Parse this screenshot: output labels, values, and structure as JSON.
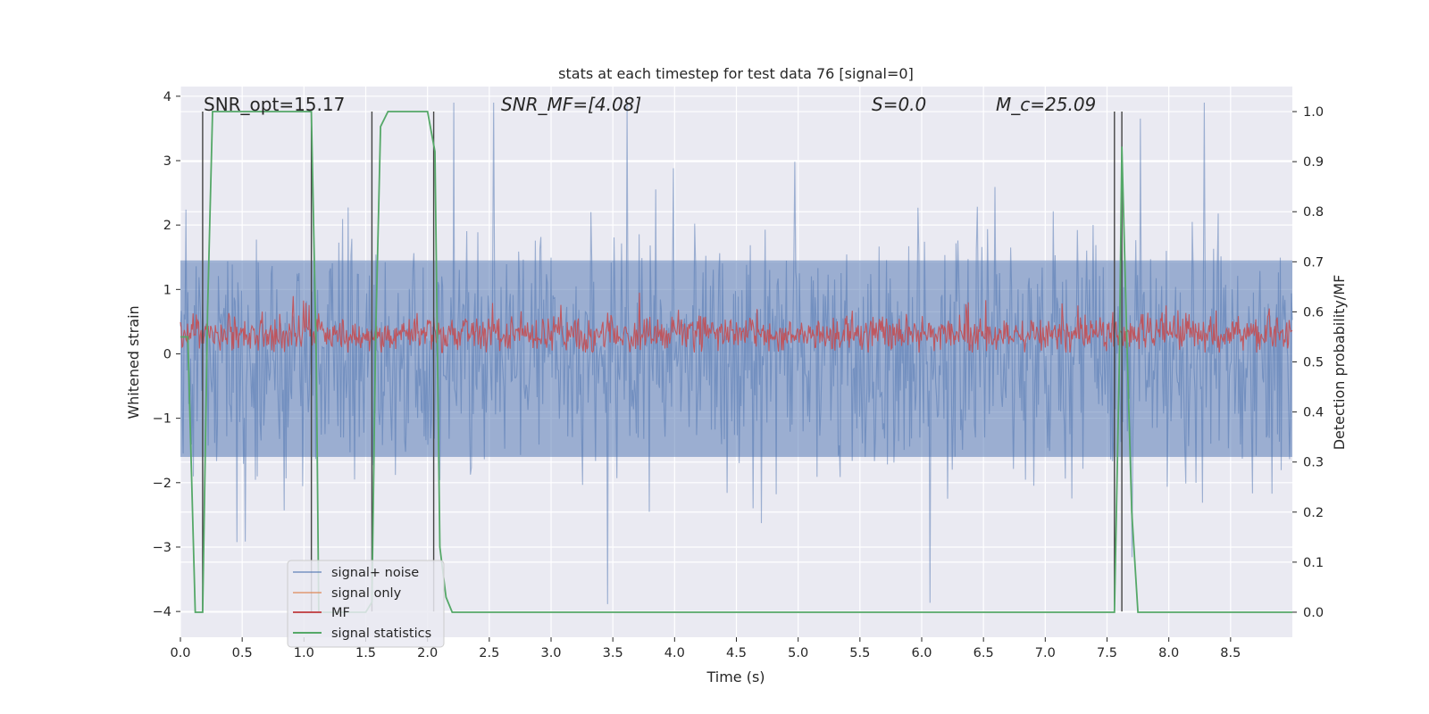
{
  "chart_data": {
    "type": "line",
    "title": "stats at each timestep for test data 76 [signal=0]",
    "xlabel": "Time (s)",
    "ylabel_left": "Whitened strain",
    "ylabel_right": "Detection probability/MF",
    "xlim": [
      0.0,
      9.0
    ],
    "ylim_left": [
      -4.4,
      4.15
    ],
    "ylim_right": [
      -0.05,
      1.05
    ],
    "x_ticks": [
      "0.0",
      "0.5",
      "1.0",
      "1.5",
      "2.0",
      "2.5",
      "3.0",
      "3.5",
      "4.0",
      "4.5",
      "5.0",
      "5.5",
      "6.0",
      "6.5",
      "7.0",
      "7.5",
      "8.0",
      "8.5"
    ],
    "y_ticks_left": [
      "4",
      "3",
      "2",
      "1",
      "0",
      "−1",
      "−2",
      "−3",
      "−4"
    ],
    "y_ticks_right": [
      "1.0",
      "0.9",
      "0.8",
      "0.7",
      "0.6",
      "0.5",
      "0.4",
      "0.3",
      "0.2",
      "0.1",
      "0.0"
    ],
    "grid": true,
    "legend_position": "lower-left",
    "annotations": {
      "snr_opt": "SNR_opt=15.17",
      "snr_mf": "SNR_MF=[4.08]",
      "s_value": "S=0.0",
      "mc_value": "M_c=25.09"
    },
    "vertical_markers_s": [
      0.18,
      1.06,
      1.55,
      2.05,
      7.56,
      7.62
    ],
    "series": [
      {
        "name": "signal+ noise",
        "axis": "left",
        "color": "#4c72b0",
        "description_range": [
          -3.9,
          3.9
        ],
        "envelope_samples_x": [
          0.0,
          9.0
        ],
        "amplitude_typical": 1.5
      },
      {
        "name": "signal only",
        "axis": "left",
        "color": "#dd8452",
        "values_constant": 0.0
      },
      {
        "name": "MF",
        "axis": "left",
        "color": "#c44e52",
        "center": 0.3,
        "amplitude_typical": 0.25
      },
      {
        "name": "signal statistics",
        "axis": "right",
        "color": "#55a868",
        "x": [
          0.0,
          0.06,
          0.12,
          0.18,
          0.22,
          0.26,
          0.3,
          1.0,
          1.06,
          1.1,
          1.12,
          1.3,
          1.5,
          1.55,
          1.58,
          1.62,
          1.68,
          1.72,
          2.0,
          2.06,
          2.1,
          2.15,
          2.2,
          2.25,
          7.5,
          7.56,
          7.6,
          7.62,
          7.66,
          7.7,
          7.75,
          9.0
        ],
        "y": [
          0.55,
          0.55,
          0.0,
          0.0,
          0.6,
          1.0,
          1.0,
          1.0,
          1.0,
          0.5,
          0.0,
          0.0,
          0.0,
          0.02,
          0.55,
          0.97,
          1.0,
          1.0,
          1.0,
          0.92,
          0.13,
          0.03,
          0.0,
          0.0,
          0.0,
          0.0,
          0.5,
          0.93,
          0.55,
          0.2,
          0.0,
          0.0
        ]
      }
    ]
  },
  "legend": {
    "items": [
      {
        "label": "signal+ noise",
        "color": "#4c72b0"
      },
      {
        "label": "signal only",
        "color": "#dd8452"
      },
      {
        "label": "MF",
        "color": "#c44e52"
      },
      {
        "label": "signal statistics",
        "color": "#55a868"
      }
    ]
  },
  "colors": {
    "plot_background": "#eaeaf2",
    "grid": "#ffffff",
    "marker": "#444444"
  }
}
